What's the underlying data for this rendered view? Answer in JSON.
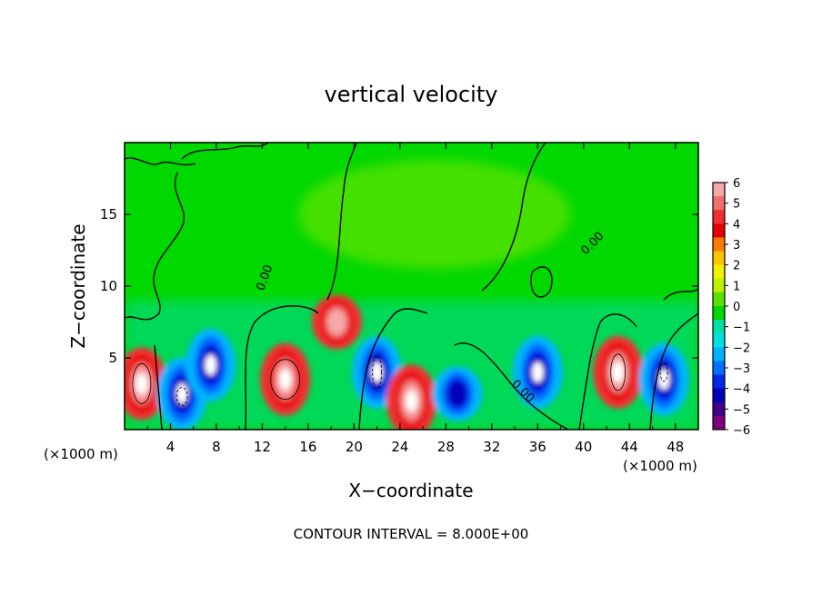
{
  "chart_data": {
    "type": "heatmap",
    "title": "vertical velocity",
    "xlabel": "X−coordinate",
    "ylabel": "Z−coordinate",
    "x_unit_left": "(×1000 m)",
    "x_unit_right": "(×1000 m)",
    "xlim": [
      0,
      50
    ],
    "ylim": [
      0,
      20
    ],
    "xticks": [
      "4",
      "8",
      "12",
      "16",
      "20",
      "24",
      "28",
      "32",
      "36",
      "40",
      "44",
      "48"
    ],
    "yticks": [
      "5",
      "10",
      "15"
    ],
    "contour_labels": [
      "0.00",
      "0.00",
      "0.00"
    ],
    "footer": "CONTOUR INTERVAL = 8.000E+00",
    "colorbar": {
      "ticks": [
        "6",
        "5",
        "4",
        "3",
        "2",
        "1",
        "0",
        "−1",
        "−2",
        "−3",
        "−4",
        "−5",
        "−6"
      ],
      "range": [
        -6,
        6
      ],
      "colors": [
        "#f6a8a8",
        "#f07070",
        "#f03030",
        "#e60000",
        "#ff7a00",
        "#ffc400",
        "#f0f000",
        "#b8f000",
        "#58e000",
        "#00d800",
        "#00e0a0",
        "#00e0e0",
        "#00b4ff",
        "#0070ff",
        "#0028e8",
        "#0000b8",
        "#40008c",
        "#800080"
      ]
    },
    "features": [
      {
        "type": "updraft",
        "x": 1.5,
        "z": 3.2,
        "peak": 6
      },
      {
        "type": "downdraft",
        "x": 5,
        "z": 2.5,
        "peak": -6
      },
      {
        "type": "downdraft",
        "x": 7.5,
        "z": 4.5,
        "peak": -6
      },
      {
        "type": "updraft",
        "x": 14,
        "z": 3.5,
        "peak": 6
      },
      {
        "type": "updraft",
        "x": 18.5,
        "z": 7.5,
        "peak": 4
      },
      {
        "type": "downdraft",
        "x": 22,
        "z": 4,
        "peak": -6
      },
      {
        "type": "updraft",
        "x": 25,
        "z": 2,
        "peak": 6
      },
      {
        "type": "downdraft",
        "x": 29,
        "z": 2.5,
        "peak": -4
      },
      {
        "type": "downdraft",
        "x": 36,
        "z": 4,
        "peak": -6
      },
      {
        "type": "updraft",
        "x": 43,
        "z": 4,
        "peak": 6
      },
      {
        "type": "downdraft",
        "x": 47,
        "z": 3.5,
        "peak": -6
      }
    ]
  }
}
